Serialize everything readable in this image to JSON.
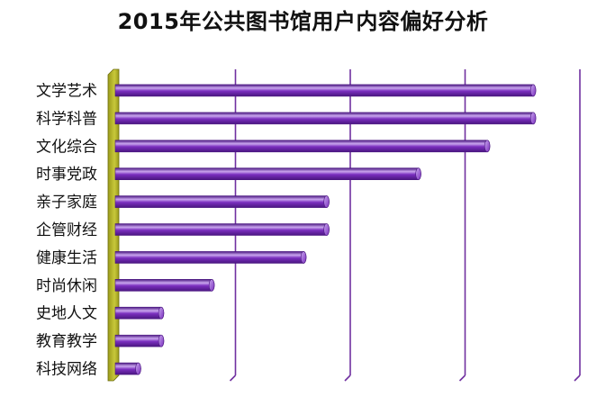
{
  "chart_data": {
    "type": "bar",
    "orientation": "horizontal",
    "title": "2015年公共图书馆用户内容偏好分析",
    "xlabel": "",
    "ylabel": "",
    "categories": [
      "文学艺术",
      "科学科普",
      "文化综合",
      "时事党政",
      "亲子家庭",
      "企管财经",
      "健康生活",
      "时尚休闲",
      "史地人文",
      "教育教学",
      "科技网络"
    ],
    "values": [
      0.91,
      0.91,
      0.81,
      0.66,
      0.46,
      0.46,
      0.41,
      0.21,
      0.1,
      0.1,
      0.05
    ],
    "xlim": [
      0,
      1
    ],
    "grid": true,
    "legend": "none",
    "style": "3d-cylinder"
  },
  "colors": {
    "bar": "#7b2fbf",
    "bar_highlight": "#c9a6ee",
    "bar_shadow": "#4a1680",
    "gridline": "#7030a0",
    "wall": "#9a9a1a",
    "wall_light": "#c8c83a"
  }
}
